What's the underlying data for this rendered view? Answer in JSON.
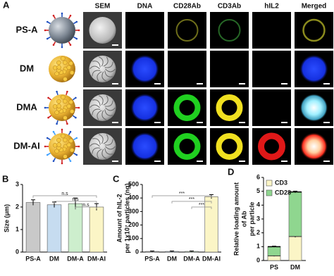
{
  "panel_a": {
    "label": "A",
    "columns": [
      "SEM",
      "DNA",
      "CD28Ab",
      "CD3Ab",
      "hIL2",
      "Merged"
    ],
    "rows": [
      "PS-A",
      "DM",
      "DMA",
      "DM-AI"
    ]
  },
  "chart_data": [
    {
      "panel": "B",
      "type": "bar",
      "ylabel": [
        "Size (μm)"
      ],
      "categories": [
        "PS-A",
        "DM",
        "DM-A",
        "DM-AI"
      ],
      "values": [
        2.2,
        2.1,
        2.15,
        2.0
      ],
      "errors": [
        0.12,
        0.12,
        0.25,
        0.15
      ],
      "colors": [
        "#c9c9c9",
        "#c6dcf0",
        "#cdeecd",
        "#fbf5c6"
      ],
      "ylim": [
        0,
        3
      ],
      "yticks": [
        0,
        1,
        2,
        3
      ],
      "annotations": [
        {
          "text": "n.s",
          "from": 0,
          "to": 3
        },
        {
          "text": "n.s",
          "from": 1,
          "to": 3
        },
        {
          "text": "n.s",
          "from": 2,
          "to": 3
        }
      ]
    },
    {
      "panel": "C",
      "type": "bar",
      "ylabel": [
        "Amount of hIL-2",
        "per 1x10⁷ particles (ng)"
      ],
      "categories": [
        "PS-A",
        "DM",
        "DM-A",
        "DM-AI"
      ],
      "values": [
        5,
        5,
        5,
        410
      ],
      "errors": [
        3,
        3,
        3,
        15
      ],
      "colors": [
        "#c9c9c9",
        "#c6dcf0",
        "#cdeecd",
        "#fbf5c6"
      ],
      "ylim": [
        0,
        500
      ],
      "yticks": [
        0,
        100,
        200,
        300,
        400,
        500
      ],
      "annotations": [
        {
          "text": "***",
          "from": 0,
          "to": 3
        },
        {
          "text": "***",
          "from": 1,
          "to": 3
        },
        {
          "text": "***",
          "from": 2,
          "to": 3
        }
      ]
    },
    {
      "panel": "D",
      "type": "stacked_bar",
      "ylabel": [
        "Relative loading amount",
        "of Ab",
        "per particle"
      ],
      "categories": [
        "PS",
        "DM"
      ],
      "series": [
        {
          "name": "CD3",
          "color": "#fbf5c6",
          "values": [
            0.35,
            1.75
          ],
          "errors": [
            0.05,
            0.08
          ]
        },
        {
          "name": "CD28",
          "color": "#8fd68f",
          "values": [
            0.65,
            3.2
          ],
          "errors": [
            0.04,
            0.06
          ]
        }
      ],
      "ylim": [
        0,
        6
      ],
      "yticks": [
        0,
        1,
        2,
        3,
        4,
        5,
        6
      ],
      "legend": "upper left"
    }
  ]
}
